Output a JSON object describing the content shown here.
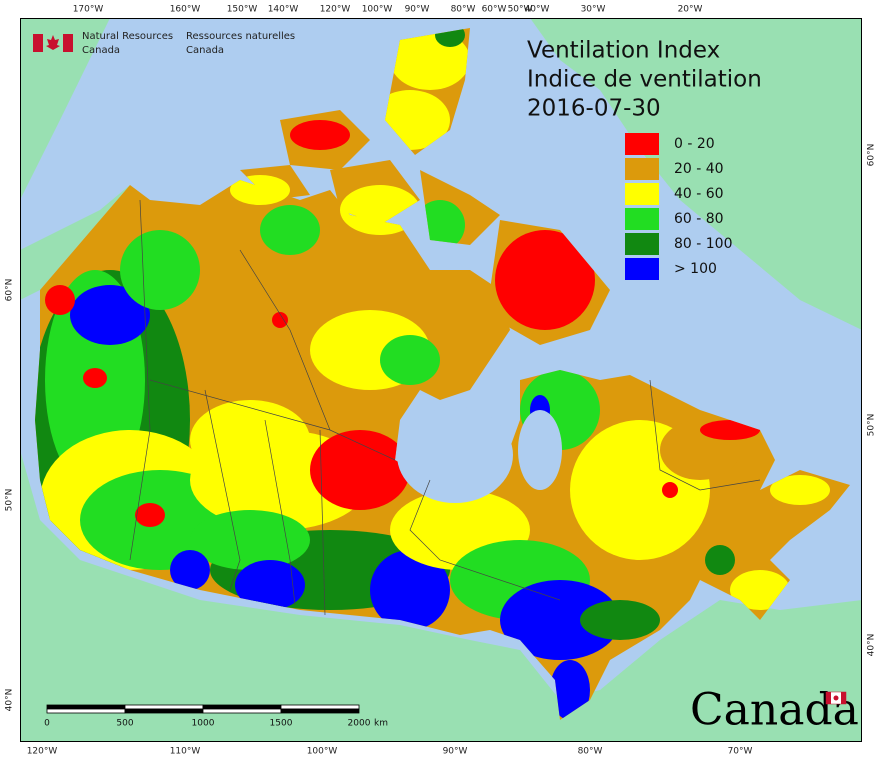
{
  "header": {
    "org_en": [
      "Natural Resources",
      "Canada"
    ],
    "org_fr": [
      "Ressources naturelles",
      "Canada"
    ]
  },
  "title": {
    "en": "Ventilation Index",
    "fr": "Indice de ventilation",
    "date": "2016-07-30"
  },
  "legend": [
    {
      "label": "0 - 20",
      "color": "#ff0000"
    },
    {
      "label": "20 - 40",
      "color": "#dc9a0c"
    },
    {
      "label": "40 - 60",
      "color": "#ffff00"
    },
    {
      "label": "60 - 80",
      "color": "#22dd22"
    },
    {
      "label": "80 - 100",
      "color": "#118811"
    },
    {
      "label": "> 100",
      "color": "#0000ff"
    }
  ],
  "graticule": {
    "top": [
      "170°W",
      "160°W",
      "150°W",
      "140°W",
      "120°W",
      "100°W",
      "90°W",
      "80°W",
      "60°W",
      "50°W",
      "40°W",
      "30°W",
      "20°W"
    ],
    "bottom": [
      "120°W",
      "110°W",
      "100°W",
      "90°W",
      "80°W",
      "70°W"
    ],
    "left": [
      "60°N",
      "50°N",
      "40°N"
    ],
    "right": [
      "60°N",
      "50°N",
      "40°N"
    ]
  },
  "scale_bar": {
    "labels": [
      "0",
      "500",
      "1000",
      "1500",
      "2000"
    ],
    "unit": "km"
  },
  "wordmark": "Canada"
}
